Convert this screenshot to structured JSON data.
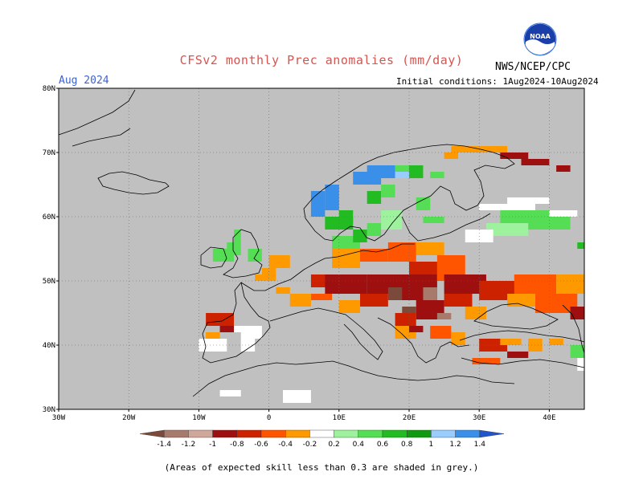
{
  "header": {
    "title": "CFSv2 monthly Prec anomalies (mm/day)",
    "agency": "NWS/NCEP/CPC",
    "month": "Aug 2024",
    "initial_conditions": "Initial conditions: 1Aug2024-10Aug2024",
    "logo_text": "NOAA"
  },
  "map": {
    "lon_range": [
      -30,
      45
    ],
    "lat_range": [
      30,
      80
    ],
    "lat_labels": [
      "80N",
      "70N",
      "60N",
      "50N",
      "40N",
      "30N"
    ],
    "lon_labels": [
      "30W",
      "20W",
      "10W",
      "0",
      "10E",
      "20E",
      "30E",
      "40E"
    ],
    "grid": "dotted",
    "background_color": "#c0c0c0"
  },
  "colorbar": {
    "labels": [
      "-1.4",
      "-1.2",
      "-1",
      "-0.8",
      "-0.6",
      "-0.4",
      "-0.2",
      "0.2",
      "0.4",
      "0.6",
      "0.8",
      "1",
      "1.2",
      "1.4"
    ],
    "colors": [
      "#7b4a3a",
      "#a87a6c",
      "#cfa89a",
      "#9e0f0f",
      "#cc2200",
      "#ff5500",
      "#ff9900",
      "#ffffff",
      "#9ef29e",
      "#55dd55",
      "#22bb22",
      "#119911",
      "#99ccff",
      "#3a8fe8",
      "#2255cc"
    ]
  },
  "footer": {
    "note": "(Areas of expected skill less than 0.3 are shaded in grey.)"
  }
}
